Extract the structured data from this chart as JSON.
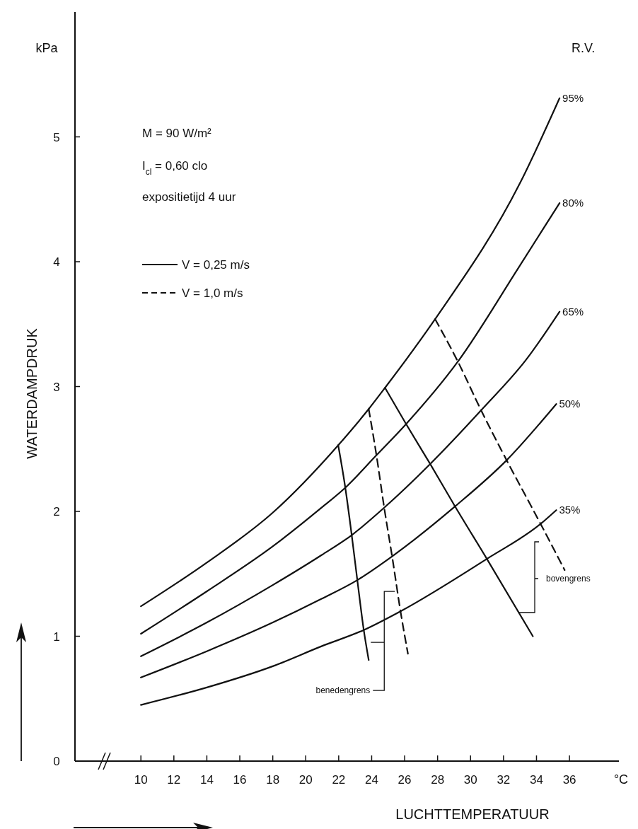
{
  "chart_data": {
    "type": "line",
    "xlabel": "LUCHTTEMPERATUUR",
    "ylabel": "WATERDAMPDRUK",
    "xlim": [
      6,
      39
    ],
    "ylim": [
      0,
      6
    ],
    "xticks": [
      10,
      12,
      14,
      16,
      18,
      20,
      22,
      24,
      26,
      28,
      30,
      32,
      34,
      36
    ],
    "yticks": [
      0,
      1,
      2,
      3,
      4,
      5
    ],
    "legend": "top left",
    "annotations": [
      "M = 90 W/m²",
      "I$_{cl}$ = 0,60 clo",
      "expositietijd  4 uur",
      "R.V.",
      "kPa",
      "°C",
      {
        "text": "benedengrens",
        "x": 23.82,
        "y": 0.81
      },
      "bovengrens"
    ],
    "series": [
      {
        "name": "95%",
        "color": "#111111",
        "line_style": "solid",
        "x": [
          10,
          14,
          18,
          21.97,
          23.82,
          24.81,
          27.85,
          33.0,
          35.4
        ],
        "values": [
          1.24,
          1.59,
          1.99,
          2.53,
          2.82,
          2.99,
          3.54,
          4.63,
          5.31
        ]
      },
      {
        "name": "80%",
        "color": "#111111",
        "line_style": "solid",
        "x": [
          10,
          14,
          18,
          20.96,
          22.4,
          24.29,
          26.09,
          29.23,
          32.9,
          35.4
        ],
        "values": [
          1.02,
          1.36,
          1.72,
          2.03,
          2.19,
          2.45,
          2.7,
          3.2,
          3.95,
          4.47
        ]
      },
      {
        "name": "65%",
        "color": "#111111",
        "line_style": "solid",
        "x": [
          10,
          14,
          18,
          20.96,
          22.79,
          24.76,
          27.55,
          30.64,
          33.4,
          35.4
        ],
        "values": [
          0.84,
          1.11,
          1.41,
          1.65,
          1.81,
          2.03,
          2.38,
          2.81,
          3.22,
          3.6
        ]
      },
      {
        "name": "50%",
        "color": "#111111",
        "line_style": "solid",
        "x": [
          10,
          14,
          18,
          20.96,
          23.13,
          25.24,
          29.06,
          32.19,
          35.2
        ],
        "values": [
          0.67,
          0.88,
          1.11,
          1.3,
          1.45,
          1.64,
          2.04,
          2.41,
          2.86
        ]
      },
      {
        "name": "35%",
        "color": "#111111",
        "line_style": "solid",
        "x": [
          10,
          14,
          18,
          20.96,
          23.52,
          25.75,
          30.99,
          34.25,
          35.2
        ],
        "values": [
          0.45,
          0.59,
          0.76,
          0.92,
          1.05,
          1.2,
          1.62,
          1.9,
          2.01
        ]
      },
      {
        "name": "V = 0,25 m/s",
        "color": "#111111",
        "line_style": "solid",
        "x": [
          21.97,
          22.4,
          22.79,
          23.13,
          23.52,
          23.82
        ],
        "values": [
          2.53,
          2.19,
          1.81,
          1.45,
          1.05,
          0.81
        ]
      },
      {
        "name": "V = 1,0 m/s",
        "color": "#111111",
        "line_style": "dashed",
        "x": [
          23.82,
          24.29,
          24.76,
          25.24,
          25.75,
          26.2
        ],
        "values": [
          2.82,
          2.45,
          2.03,
          1.64,
          1.2,
          0.86
        ]
      },
      {
        "color": "#111111",
        "line_style": "solid",
        "x": [
          24.81,
          26.09,
          27.55,
          29.06,
          30.99,
          33.78
        ],
        "values": [
          2.99,
          2.7,
          2.38,
          2.04,
          1.62,
          1.0
        ]
      },
      {
        "color": "#111111",
        "line_style": "dashed",
        "x": [
          27.85,
          29.23,
          30.64,
          32.19,
          34.25,
          35.71
        ],
        "values": [
          3.54,
          3.2,
          2.81,
          2.41,
          1.9,
          1.53
        ]
      }
    ]
  }
}
